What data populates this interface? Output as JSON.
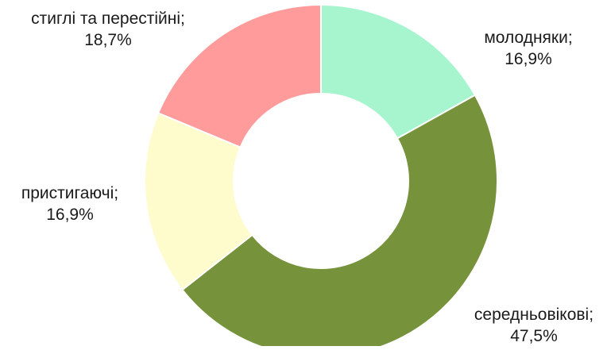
{
  "chart_data": {
    "type": "pie",
    "variant": "donut",
    "title": "",
    "categories": [
      "молодняки",
      "середньовікові",
      "пристигаючі",
      "стиглі та перестійні"
    ],
    "values": [
      16.9,
      47.5,
      16.9,
      18.7
    ],
    "unit": "%",
    "data_labels": [
      {
        "name": "молодняки;",
        "value": "16,9%"
      },
      {
        "name": "середньовікові;",
        "value": "47,5%"
      },
      {
        "name": "пристигаючі;",
        "value": "16,9%"
      },
      {
        "name": "стиглі та перестійні;",
        "value": "18,7%"
      }
    ],
    "colors": [
      "#a6f5cf",
      "#76933c",
      "#fefbcc",
      "#ff9b9b"
    ],
    "start_angle_deg": 0,
    "direction": "clockwise",
    "legend": "none"
  }
}
